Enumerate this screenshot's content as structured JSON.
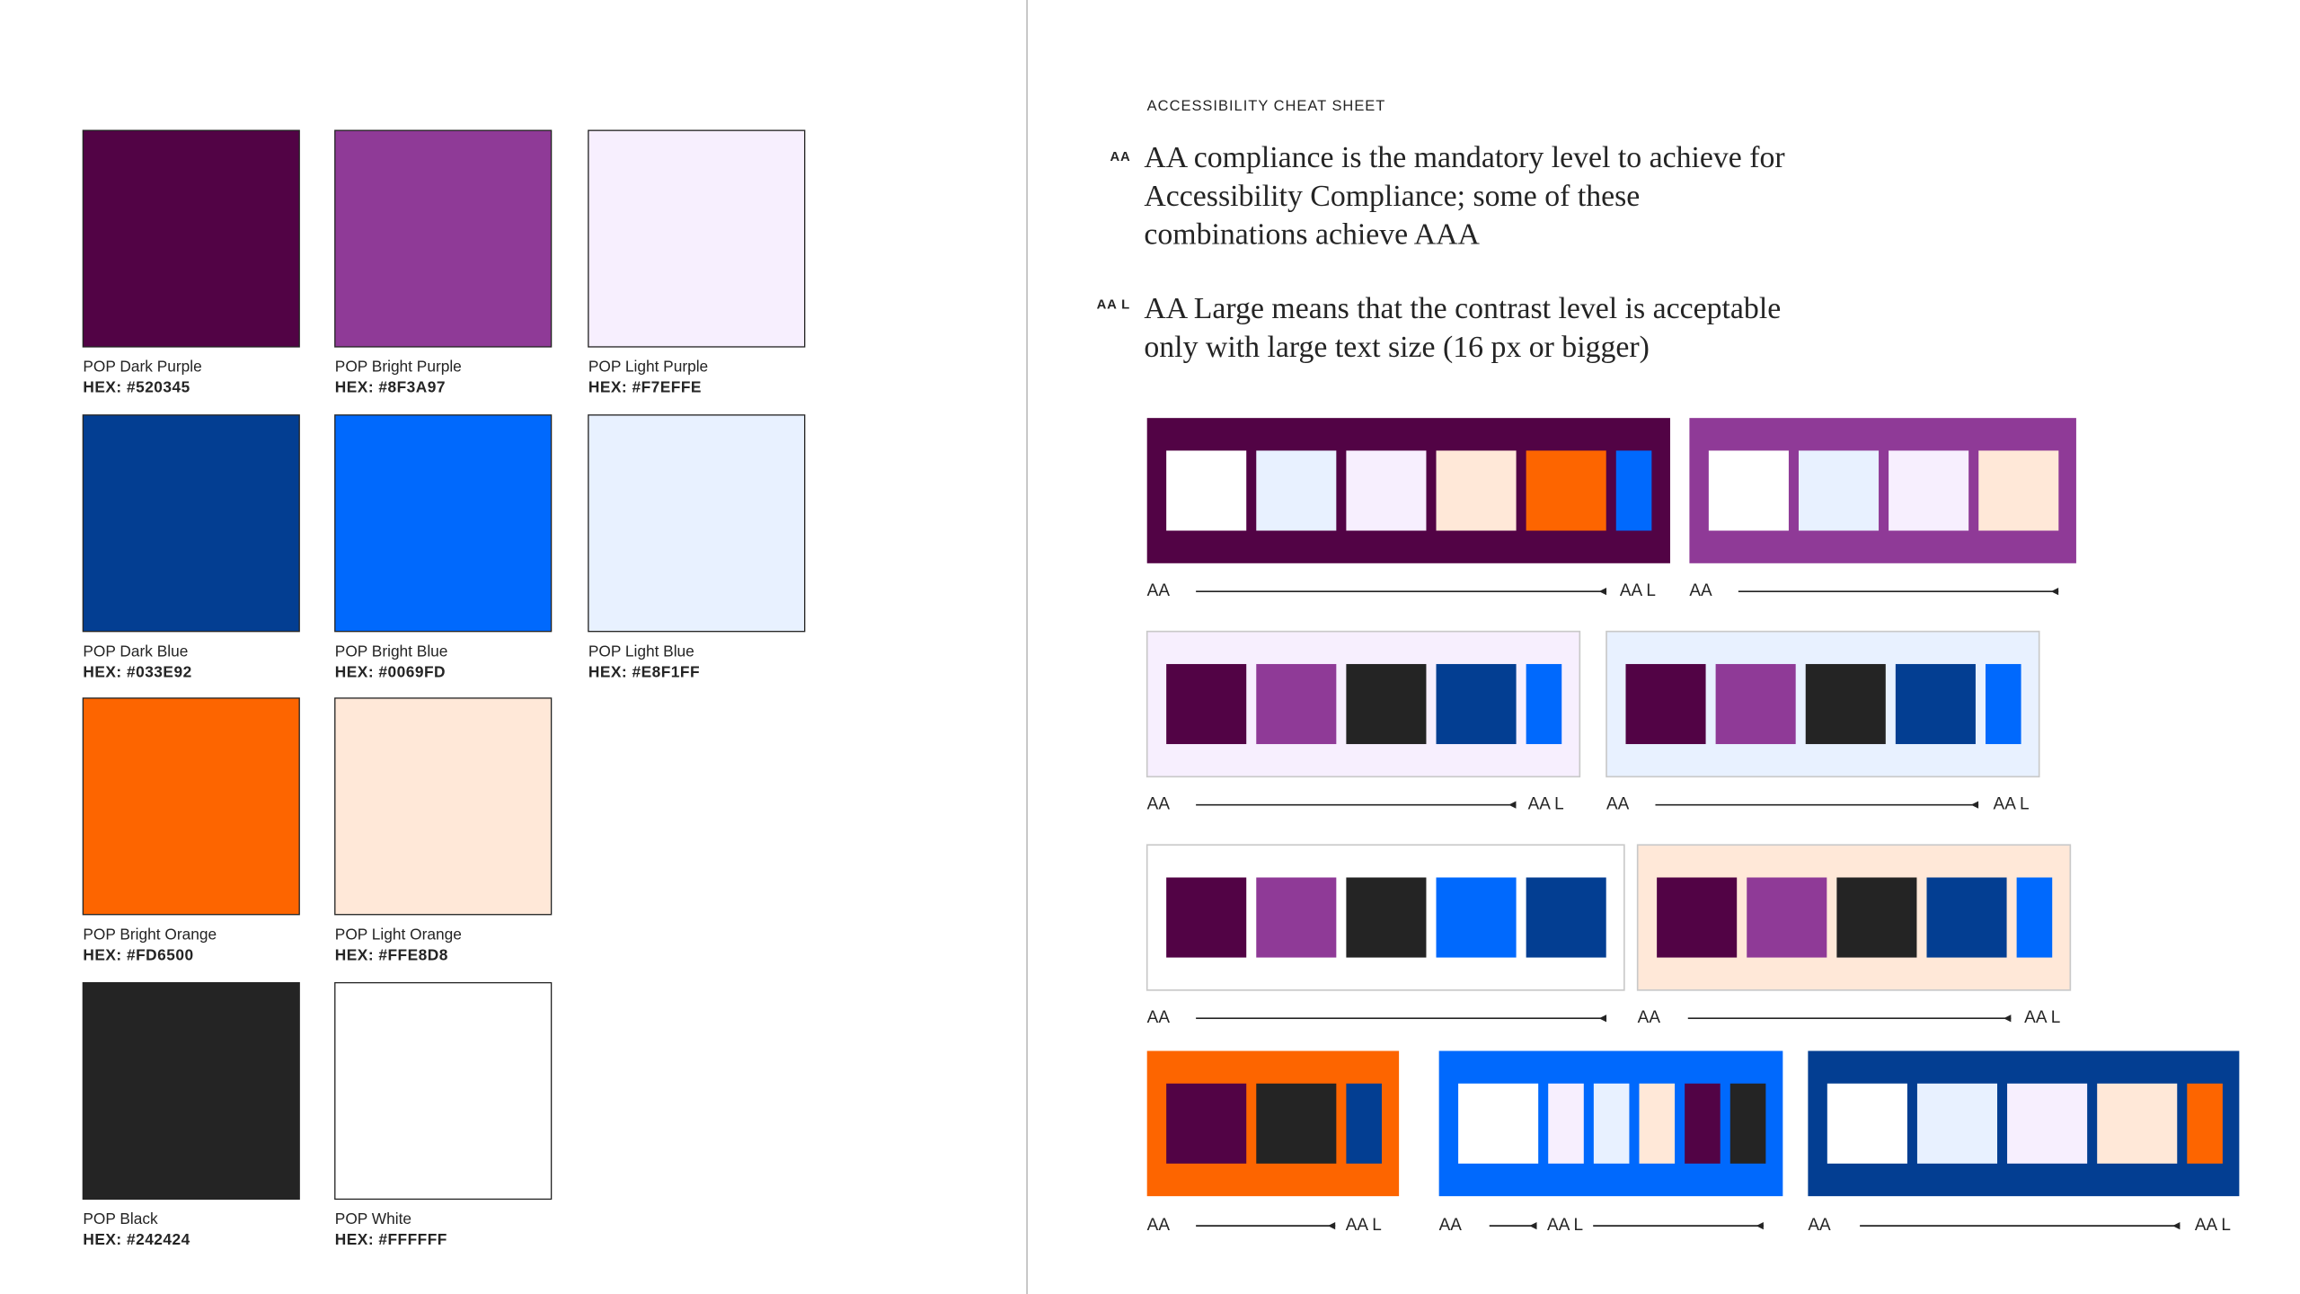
{
  "palette": [
    [
      {
        "name": "POP Dark Purple",
        "hex": "HEX: #520345",
        "color": "#520345"
      },
      {
        "name": "POP Bright Purple",
        "hex": "HEX: #8F3A97",
        "color": "#8F3A97"
      },
      {
        "name": "POP Light Purple",
        "hex": "HEX: #F7EFFE",
        "color": "#F7EFFE"
      }
    ],
    [
      {
        "name": "POP Dark Blue",
        "hex": "HEX: #033E92",
        "color": "#033E92"
      },
      {
        "name": "POP Bright Blue",
        "hex": "HEX: #0069FD",
        "color": "#0069FD"
      },
      {
        "name": "POP Light Blue",
        "hex": "HEX: #E8F1FF",
        "color": "#E8F1FF"
      }
    ],
    [
      {
        "name": "POP Bright Orange",
        "hex": "HEX: #FD6500",
        "color": "#FD6500"
      },
      {
        "name": "POP Light Orange",
        "hex": "HEX: #FFE8D8",
        "color": "#FFE8D8"
      }
    ],
    [
      {
        "name": "POP Black",
        "hex": "HEX: #242424",
        "color": "#242424"
      },
      {
        "name": "POP White",
        "hex": "HEX: #FFFFFF",
        "color": "#FFFFFF"
      }
    ]
  ],
  "cheat_sheet": {
    "heading": "ACCESSIBILITY CHEAT SHEET",
    "notes": [
      {
        "badge": "AA",
        "lines": [
          "AA compliance is the mandatory level to achieve for",
          "Accessibility Compliance; some of these",
          "combinations achieve AAA"
        ]
      },
      {
        "badge": "AA L",
        "lines": [
          "AA Large means that the contrast level is acceptable",
          "only with large text size (16 px or bigger)"
        ]
      }
    ],
    "combinations": [
      {
        "background": "#520345",
        "swatches": [
          "#FFFFFF",
          "#E8F1FF",
          "#F7EFFE",
          "#FFE8D8",
          "#FD6500",
          "#0069FD"
        ],
        "labels": [
          "AA",
          "AA L"
        ]
      },
      {
        "background": "#8F3A97",
        "swatches": [
          "#FFFFFF",
          "#E8F1FF",
          "#F7EFFE",
          "#FFE8D8"
        ],
        "labels": [
          "AA"
        ]
      },
      {
        "background": "#F7EFFE",
        "swatches": [
          "#520345",
          "#8F3A97",
          "#242424",
          "#033E92",
          "#0069FD"
        ],
        "labels": [
          "AA",
          "AA L"
        ]
      },
      {
        "background": "#E8F1FF",
        "swatches": [
          "#520345",
          "#8F3A97",
          "#242424",
          "#033E92",
          "#0069FD"
        ],
        "labels": [
          "AA",
          "AA L"
        ]
      },
      {
        "background": "#FFFFFF",
        "swatches": [
          "#520345",
          "#8F3A97",
          "#242424",
          "#0069FD",
          "#033E92"
        ],
        "labels": [
          "AA"
        ]
      },
      {
        "background": "#FFE8D8",
        "swatches": [
          "#520345",
          "#8F3A97",
          "#242424",
          "#033E92",
          "#0069FD"
        ],
        "labels": [
          "AA",
          "AA L"
        ]
      },
      {
        "background": "#FD6500",
        "swatches": [
          "#520345",
          "#242424",
          "#033E92"
        ],
        "labels": [
          "AA",
          "AA L"
        ]
      },
      {
        "background": "#0069FD",
        "swatches": [
          "#FFFFFF",
          "#F7EFFE",
          "#E8F1FF",
          "#FFE8D8",
          "#520345",
          "#242424"
        ],
        "labels": [
          "AA",
          "AA L"
        ]
      },
      {
        "background": "#033E92",
        "swatches": [
          "#FFFFFF",
          "#E8F1FF",
          "#F7EFFE",
          "#FFE8D8",
          "#FD6500"
        ],
        "labels": [
          "AA",
          "AA L"
        ]
      }
    ]
  }
}
